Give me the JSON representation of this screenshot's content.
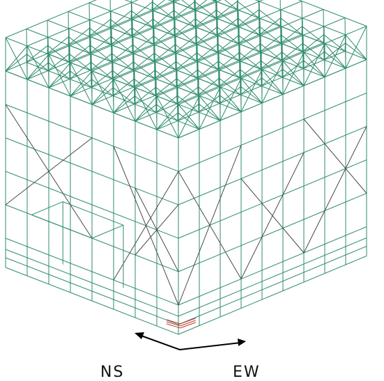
{
  "diagram": {
    "axis_labels": {
      "ns": "NS",
      "ew": "EW"
    },
    "colors": {
      "frame_green": "#2e8b6e",
      "brace_dark": "#4a4a4a",
      "base_plate": "#c0392b",
      "arrow": "#000000"
    },
    "icons": [
      "ns-direction-arrow",
      "ew-direction-arrow"
    ]
  }
}
